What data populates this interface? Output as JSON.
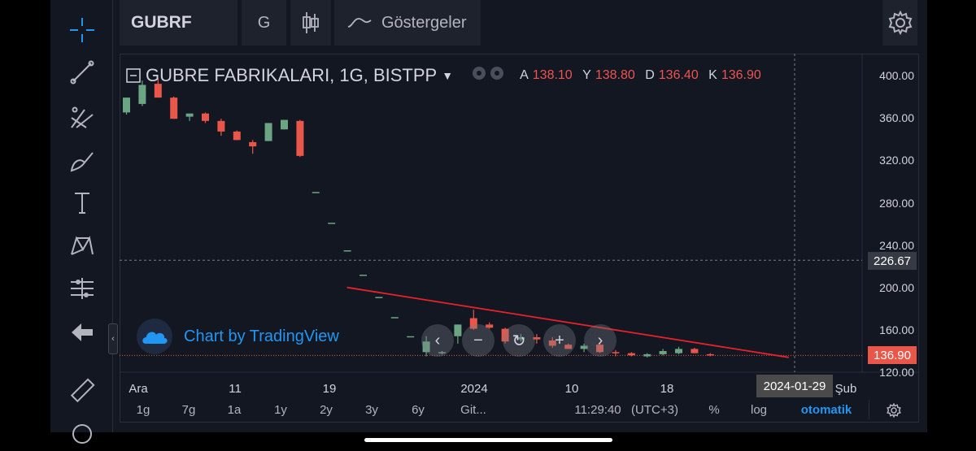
{
  "topbar": {
    "symbol": "GUBRF",
    "interval": "G",
    "indicators_label": "Göstergeler"
  },
  "legend": {
    "title": "GUBRE FABRIKALARI, 1G, BISTPP",
    "ohlc": [
      {
        "key": "A",
        "value": "138.10"
      },
      {
        "key": "Y",
        "value": "138.80"
      },
      {
        "key": "D",
        "value": "136.40"
      },
      {
        "key": "K",
        "value": "136.90"
      }
    ]
  },
  "watermark": {
    "text": "Chart by TradingView"
  },
  "price_axis": {
    "labels": [
      "400.00",
      "360.00",
      "320.00",
      "280.00",
      "240.00",
      "200.00",
      "160.00",
      "120.00"
    ],
    "crosshair_price": "226.67",
    "last_price": "136.90"
  },
  "time_axis": {
    "labels": [
      "Ara",
      "11",
      "19",
      "2024",
      "10",
      "18",
      "Şub"
    ],
    "crosshair_date": "2024-01-29"
  },
  "bottombar": {
    "ranges": [
      "1g",
      "7g",
      "1a",
      "1y",
      "2y",
      "3y",
      "6y",
      "Git..."
    ],
    "clock": "11:29:40",
    "timezone": "(UTC+3)",
    "percent": "%",
    "log": "log",
    "auto": "otomatik"
  },
  "colors": {
    "up": "#6ba583",
    "down": "#e8574a",
    "trendline": "#e8222b",
    "accent": "#2196f3"
  },
  "icons": [
    "crosshair-icon",
    "trendline-icon",
    "pitchfork-icon",
    "brush-icon",
    "text-icon",
    "pattern-icon",
    "measure-icon",
    "back-arrow-icon",
    "ruler-icon",
    "magnet-icon",
    "candles-icon",
    "indicator-icon",
    "gear-icon"
  ],
  "chart_data": {
    "type": "candlestick",
    "title": "GUBRE FABRIKALARI, 1G, BISTPP",
    "ylim": [
      120,
      410
    ],
    "candles": [
      {
        "o": 366,
        "h": 380,
        "l": 364,
        "c": 380
      },
      {
        "o": 374,
        "h": 396,
        "l": 372,
        "c": 392
      },
      {
        "o": 393,
        "h": 398,
        "l": 380,
        "c": 380
      },
      {
        "o": 380,
        "h": 381,
        "l": 360,
        "c": 360
      },
      {
        "o": 362,
        "h": 364,
        "l": 358,
        "c": 365
      },
      {
        "o": 365,
        "h": 366,
        "l": 356,
        "c": 358
      },
      {
        "o": 358,
        "h": 360,
        "l": 344,
        "c": 348
      },
      {
        "o": 348,
        "h": 349,
        "l": 340,
        "c": 340
      },
      {
        "o": 338,
        "h": 340,
        "l": 327,
        "c": 334
      },
      {
        "o": 339,
        "h": 356,
        "l": 339,
        "c": 356
      },
      {
        "o": 350,
        "h": 359,
        "l": 350,
        "c": 359
      },
      {
        "o": 358,
        "h": 359,
        "l": 324,
        "c": 325
      },
      {
        "o": 291,
        "h": 291,
        "l": 291,
        "c": 291
      },
      {
        "o": 262,
        "h": 262,
        "l": 262,
        "c": 262
      },
      {
        "o": 236,
        "h": 236,
        "l": 236,
        "c": 236
      },
      {
        "o": 213,
        "h": 213,
        "l": 213,
        "c": 213
      },
      {
        "o": 192,
        "h": 192,
        "l": 192,
        "c": 192
      },
      {
        "o": 173,
        "h": 173,
        "l": 173,
        "c": 173
      },
      {
        "o": 155,
        "h": 155,
        "l": 155,
        "c": 155
      },
      {
        "o": 140,
        "h": 155,
        "l": 136,
        "c": 150
      },
      {
        "o": 139,
        "h": 141,
        "l": 138,
        "c": 140
      },
      {
        "o": 155,
        "h": 166,
        "l": 148,
        "c": 166
      },
      {
        "o": 172,
        "h": 180,
        "l": 161,
        "c": 162
      },
      {
        "o": 166,
        "h": 168,
        "l": 162,
        "c": 163
      },
      {
        "o": 162,
        "h": 163,
        "l": 148,
        "c": 150
      },
      {
        "o": 152,
        "h": 157,
        "l": 150,
        "c": 154
      },
      {
        "o": 154,
        "h": 157,
        "l": 148,
        "c": 152
      },
      {
        "o": 151,
        "h": 154,
        "l": 144,
        "c": 146
      },
      {
        "o": 147,
        "h": 148,
        "l": 143,
        "c": 143
      },
      {
        "o": 143,
        "h": 148,
        "l": 140,
        "c": 146
      },
      {
        "o": 147,
        "h": 149,
        "l": 139,
        "c": 140
      },
      {
        "o": 140,
        "h": 142,
        "l": 136,
        "c": 139
      },
      {
        "o": 139,
        "h": 140,
        "l": 136,
        "c": 137
      },
      {
        "o": 136,
        "h": 139,
        "l": 135,
        "c": 138
      },
      {
        "o": 138,
        "h": 143,
        "l": 137,
        "c": 141
      },
      {
        "o": 139,
        "h": 145,
        "l": 138,
        "c": 143
      },
      {
        "o": 143,
        "h": 144,
        "l": 139,
        "c": 139
      },
      {
        "o": 138,
        "h": 139,
        "l": 136,
        "c": 137
      }
    ],
    "trendline": {
      "from": {
        "candle": 14,
        "price": 201
      },
      "to": {
        "candle": 42,
        "price": 135
      }
    },
    "crosshair": {
      "price": 226.67,
      "date": "2024-01-29"
    },
    "last_price": 136.9
  }
}
